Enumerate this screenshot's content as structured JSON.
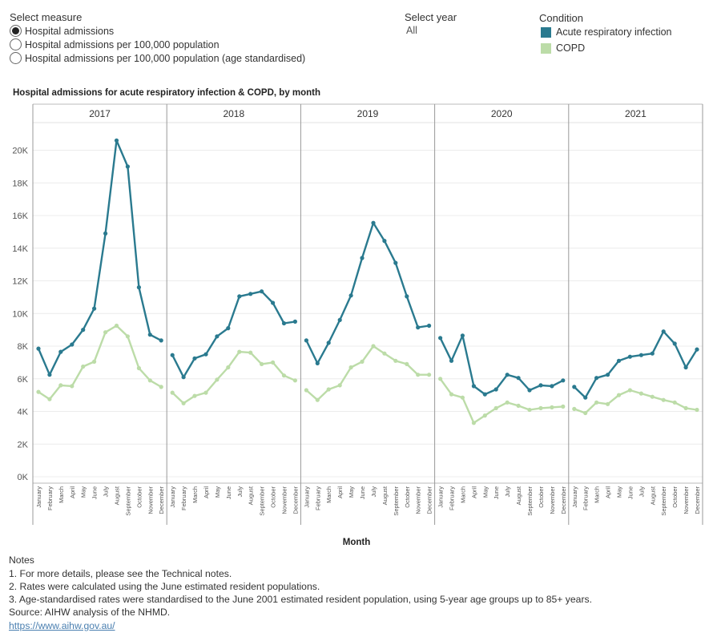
{
  "controls": {
    "measure_title": "Select measure",
    "measure_options": [
      "Hospital admissions",
      "Hospital admissions per 100,000 population",
      "Hospital admissions per 100,000 population (age standardised)"
    ],
    "selected_measure_index": 0,
    "year_title": "Select year",
    "year_value": "All"
  },
  "legend": {
    "title": "Condition",
    "items": [
      {
        "label": "Acute respiratory infection",
        "color": "#2a7a8f"
      },
      {
        "label": "COPD",
        "color": "#bcdca8"
      }
    ]
  },
  "chart_data": {
    "type": "line",
    "title": "Hospital admissions for acute respiratory infection & COPD, by month",
    "xlabel": "Month",
    "ylabel": "",
    "ylim": [
      0,
      21500
    ],
    "y_ticks": [
      0,
      2000,
      4000,
      6000,
      8000,
      10000,
      12000,
      14000,
      16000,
      18000,
      20000
    ],
    "y_tick_labels": [
      "0K",
      "2K",
      "4K",
      "6K",
      "8K",
      "10K",
      "12K",
      "14K",
      "16K",
      "18K",
      "20K"
    ],
    "grid": true,
    "months": [
      "January",
      "February",
      "March",
      "April",
      "May",
      "June",
      "July",
      "August",
      "September",
      "October",
      "November",
      "December"
    ],
    "panels": [
      {
        "year": "2017",
        "series": [
          {
            "name": "Acute respiratory infection",
            "color": "#2a7a8f",
            "values": [
              7850,
              6250,
              7650,
              8100,
              9000,
              10300,
              14900,
              20600,
              19000,
              11600,
              8700,
              8350
            ]
          },
          {
            "name": "COPD",
            "color": "#bcdca8",
            "values": [
              5200,
              4750,
              5600,
              5550,
              6750,
              7050,
              8850,
              9250,
              8600,
              6650,
              5900,
              5500
            ]
          }
        ]
      },
      {
        "year": "2018",
        "series": [
          {
            "name": "Acute respiratory infection",
            "color": "#2a7a8f",
            "values": [
              7450,
              6100,
              7250,
              7500,
              8600,
              9100,
              11050,
              11200,
              11350,
              10650,
              9400,
              9500
            ]
          },
          {
            "name": "COPD",
            "color": "#bcdca8",
            "values": [
              5150,
              4500,
              4950,
              5150,
              5950,
              6700,
              7650,
              7600,
              6900,
              7000,
              6200,
              5900
            ]
          }
        ]
      },
      {
        "year": "2019",
        "series": [
          {
            "name": "Acute respiratory infection",
            "color": "#2a7a8f",
            "values": [
              8350,
              6950,
              8200,
              9600,
              11100,
              13400,
              15550,
              14450,
              13100,
              11050,
              9150,
              9250
            ]
          },
          {
            "name": "COPD",
            "color": "#bcdca8",
            "values": [
              5300,
              4700,
              5350,
              5600,
              6700,
              7050,
              8000,
              7550,
              7100,
              6900,
              6250,
              6250
            ]
          }
        ]
      },
      {
        "year": "2020",
        "series": [
          {
            "name": "Acute respiratory infection",
            "color": "#2a7a8f",
            "values": [
              8500,
              7100,
              8650,
              5550,
              5050,
              5350,
              6250,
              6050,
              5300,
              5600,
              5550,
              5900
            ]
          },
          {
            "name": "COPD",
            "color": "#bcdca8",
            "values": [
              6000,
              5050,
              4850,
              3300,
              3750,
              4200,
              4550,
              4350,
              4100,
              4200,
              4250,
              4300
            ]
          }
        ]
      },
      {
        "year": "2021",
        "series": [
          {
            "name": "Acute respiratory infection",
            "color": "#2a7a8f",
            "values": [
              5500,
              4850,
              6050,
              6250,
              7100,
              7350,
              7450,
              7550,
              8900,
              8150,
              6700,
              7800
            ]
          },
          {
            "name": "COPD",
            "color": "#bcdca8",
            "values": [
              4150,
              3900,
              4550,
              4450,
              5000,
              5300,
              5100,
              4900,
              4700,
              4550,
              4200,
              4100
            ]
          }
        ]
      }
    ]
  },
  "notes": {
    "heading": "Notes",
    "lines": [
      "1. For more details, please see the Technical notes.",
      "2. Rates were calculated using the June estimated resident populations.",
      "3. Age-standardised rates were standardised to the June 2001 estimated resident population, using 5-year age groups up to 85+ years.",
      "Source: AIHW analysis of the NHMD."
    ],
    "link": "https://www.aihw.gov.au/"
  }
}
